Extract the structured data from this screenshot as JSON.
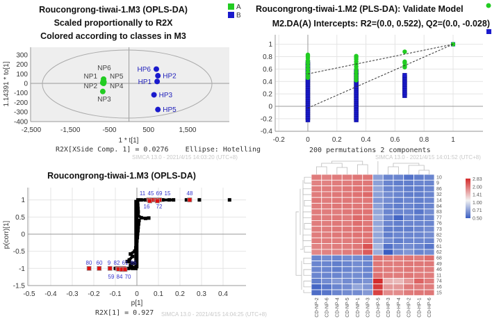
{
  "chart_data": [
    {
      "type": "scatter",
      "title": [
        "Roucongrong-tiwai-1.M3 (OPLS-DA)",
        "Scaled proportionally to R2X",
        "Colored according to classes in M3"
      ],
      "xlabel": "1 * t[1]",
      "ylabel": "1.14391 * to[1]",
      "footer": "R2X[XSide Comp. 1] = 0.0276    Ellipse: Hotelling",
      "watermark": "SIMCA 13.0 - 2021/4/15 14:03:20 (UTC+8)",
      "xlim": [
        -2500,
        2300
      ],
      "ylim": [
        -400,
        350
      ],
      "xticks": [
        "-2,500",
        "-1,500",
        "-500",
        "500",
        "1,500"
      ],
      "xtick_values": [
        -2500,
        -1500,
        -500,
        500,
        1500
      ],
      "yticks": [
        "300",
        "200",
        "100",
        "0",
        "-100",
        "-200",
        "-300",
        "-400"
      ],
      "ytick_values": [
        300,
        200,
        100,
        0,
        -100,
        -200,
        -300,
        -400
      ],
      "legend": [
        {
          "label": "A",
          "color": "#22cc22"
        },
        {
          "label": "B",
          "color": "#1a1acc"
        }
      ],
      "points": [
        {
          "label": "NP6",
          "class": "A",
          "x": -650,
          "y": 45
        },
        {
          "label": "NP1",
          "class": "A",
          "x": -660,
          "y": 20
        },
        {
          "label": "NP2",
          "class": "A",
          "x": -670,
          "y": 5
        },
        {
          "label": "NP5",
          "class": "A",
          "x": -640,
          "y": 15
        },
        {
          "label": "NP4",
          "class": "A",
          "x": -650,
          "y": 0
        },
        {
          "label": "NP3",
          "class": "A",
          "x": -670,
          "y": -85
        },
        {
          "label": "HP6",
          "class": "B",
          "x": 700,
          "y": 150
        },
        {
          "label": "HP2",
          "class": "B",
          "x": 740,
          "y": 80
        },
        {
          "label": "HP1",
          "class": "B",
          "x": 720,
          "y": 20
        },
        {
          "label": "HP3",
          "class": "B",
          "x": 640,
          "y": -120
        },
        {
          "label": "HP5",
          "class": "B",
          "x": 740,
          "y": -275
        }
      ]
    },
    {
      "type": "scatter",
      "title": [
        "Roucongrong-tiwai-1.M2 (PLS-DA): Validate Model",
        "M2.DA(A) Intercepts: R2=(0.0, 0.522), Q2=(0.0, -0.028)"
      ],
      "xlabel": "200 permutations 2 components",
      "watermark": "SIMCA 13.0 - 2021/4/15 14:01:52 (UTC+8)",
      "xlim": [
        -0.2,
        1.2
      ],
      "ylim": [
        -0.4,
        1.15
      ],
      "xticks": [
        "-0.2",
        "0",
        "0.2",
        "0.4",
        "0.6",
        "0.8",
        "1"
      ],
      "xtick_values": [
        -0.2,
        0,
        0.2,
        0.4,
        0.6,
        0.8,
        1
      ],
      "yticks": [
        "1",
        "0.8",
        "0.6",
        "0.4",
        "0.2",
        "0",
        "-0.2",
        "-0.4"
      ],
      "ytick_values": [
        1,
        0.8,
        0.6,
        0.4,
        0.2,
        0,
        -0.2,
        -0.4
      ],
      "series": [
        {
          "name": "R2",
          "color": "#22cc22",
          "marker": "circle",
          "points": [
            [
              0,
              0.83
            ],
            [
              0,
              0.81
            ],
            [
              0,
              0.78
            ],
            [
              0,
              0.74
            ],
            [
              0,
              0.7
            ],
            [
              0,
              0.65
            ],
            [
              0,
              0.6
            ],
            [
              0,
              0.55
            ],
            [
              0,
              0.5
            ],
            [
              0,
              0.46
            ],
            [
              0.333,
              0.81
            ],
            [
              0.333,
              0.79
            ],
            [
              0.333,
              0.76
            ],
            [
              0.333,
              0.72
            ],
            [
              0.333,
              0.68
            ],
            [
              0.333,
              0.64
            ],
            [
              0.333,
              0.6
            ],
            [
              0.333,
              0.55
            ],
            [
              0.333,
              0.5
            ],
            [
              0.333,
              0.46
            ],
            [
              0.333,
              0.42
            ],
            [
              0.667,
              0.88
            ],
            [
              0.667,
              0.72
            ],
            [
              0.667,
              0.7
            ],
            [
              0.667,
              0.65
            ],
            [
              0.667,
              0.63
            ],
            [
              1,
              1
            ]
          ]
        },
        {
          "name": "Q2",
          "color": "#1a1acc",
          "marker": "square",
          "range_points": [
            [
              0,
              -0.22,
              0.72
            ],
            [
              0.333,
              -0.22,
              0.57
            ],
            [
              0.667,
              0.17,
              0.5
            ]
          ],
          "points": [
            [
              1,
              1
            ]
          ]
        }
      ],
      "regression_lines": [
        {
          "name": "R2",
          "intercept": 0.522,
          "end": [
            1,
            1
          ]
        },
        {
          "name": "Q2",
          "intercept": -0.028,
          "end": [
            1,
            1
          ]
        }
      ]
    },
    {
      "type": "scatter",
      "title": "Roucongrong-tiwai-1.M3 (OPLS-DA)",
      "xlabel": "p[1]",
      "ylabel": "p(corr)[1]",
      "footer": "R2X[1] = 0.927",
      "watermark": "SIMCA 13.0 - 2021/4/15 14:04:25 (UTC+8)",
      "xlim": [
        -0.5,
        0.5
      ],
      "ylim": [
        -1.5,
        1.4
      ],
      "xticks": [
        "-0.5",
        "-0.4",
        "-0.3",
        "-0.2",
        "-0.1",
        "0",
        "0.1",
        "0.2",
        "0.3",
        "0.4"
      ],
      "xtick_values": [
        -0.5,
        -0.4,
        -0.3,
        -0.2,
        -0.1,
        0,
        0.1,
        0.2,
        0.3,
        0.4
      ],
      "yticks": [
        "1",
        "0.5",
        "0",
        "-0.5",
        "-1",
        "-1.5"
      ],
      "ytick_values": [
        1,
        0.5,
        0,
        -0.5,
        -1,
        -1.5
      ],
      "black_points": [
        [
          0.005,
          1
        ],
        [
          0.02,
          1
        ],
        [
          0.04,
          1
        ],
        [
          0.07,
          1
        ],
        [
          0.1,
          1
        ],
        [
          0.12,
          1
        ],
        [
          0.15,
          1
        ],
        [
          0.17,
          1
        ],
        [
          0.23,
          1
        ],
        [
          0.29,
          1
        ],
        [
          0.43,
          1
        ],
        [
          0.003,
          0.95
        ],
        [
          0.004,
          0.85
        ],
        [
          0.005,
          0.75
        ],
        [
          0.006,
          0.65
        ],
        [
          0.005,
          0.55
        ],
        [
          0.02,
          0.48
        ],
        [
          0.04,
          0.46
        ],
        [
          0.055,
          0.47
        ],
        [
          0.01,
          0.4
        ],
        [
          0.008,
          0.3
        ],
        [
          0.006,
          0.2
        ],
        [
          0.005,
          0.1
        ],
        [
          0.003,
          0
        ],
        [
          0.002,
          -0.1
        ],
        [
          0,
          -0.2
        ],
        [
          -0.003,
          -0.3
        ],
        [
          -0.005,
          -0.4
        ],
        [
          -0.01,
          -0.5
        ],
        [
          -0.03,
          -0.58
        ],
        [
          -0.02,
          -0.65
        ],
        [
          -0.035,
          -0.75
        ],
        [
          -0.045,
          -0.8
        ],
        [
          -0.02,
          -0.85
        ],
        [
          -0.03,
          -0.92
        ],
        [
          -0.005,
          -1
        ],
        [
          -0.02,
          -1
        ],
        [
          -0.04,
          -1
        ],
        [
          -0.06,
          -1
        ],
        [
          -0.08,
          -1
        ],
        [
          -0.1,
          -1
        ]
      ],
      "highlighted": [
        {
          "label": "11",
          "x": 0.055,
          "y": 1
        },
        {
          "label": "45",
          "x": 0.07,
          "y": 1
        },
        {
          "label": "69",
          "x": 0.09,
          "y": 1
        },
        {
          "label": "15",
          "x": 0.105,
          "y": 1
        },
        {
          "label": "16",
          "x": 0.06,
          "y": 0.97
        },
        {
          "label": "72",
          "x": 0.095,
          "y": 0.97
        },
        {
          "label": "48",
          "x": 0.245,
          "y": 1
        },
        {
          "label": "80",
          "x": -0.222,
          "y": -1
        },
        {
          "label": "60",
          "x": -0.175,
          "y": -1
        },
        {
          "label": "9",
          "x": -0.125,
          "y": -1
        },
        {
          "label": "82",
          "x": -0.09,
          "y": -1
        },
        {
          "label": "61",
          "x": -0.075,
          "y": -1
        },
        {
          "label": "86",
          "x": -0.06,
          "y": -1
        },
        {
          "label": "59",
          "x": -0.085,
          "y": -1.02
        },
        {
          "label": "84",
          "x": -0.07,
          "y": -1.03
        },
        {
          "label": "70",
          "x": -0.055,
          "y": -1.03
        }
      ]
    },
    {
      "type": "heatmap",
      "columns": [
        "CD-NP-2",
        "CD-NP-6",
        "CD-NP-4",
        "CD-NP-5",
        "CD-NP-1",
        "CD-NP-3",
        "CD-HP-5",
        "CD-HP-3",
        "CD-HP-4",
        "CD-HP-2",
        "CD-HP-1",
        "CD-HP-6"
      ],
      "rows": [
        "10",
        "9",
        "86",
        "32",
        "14",
        "84",
        "83",
        "77",
        "76",
        "73",
        "82",
        "70",
        "61",
        "62",
        "68",
        "49",
        "46",
        "11",
        "74",
        "16",
        "15"
      ],
      "values": [
        [
          1.85,
          1.8,
          1.85,
          1.85,
          1.9,
          1.9,
          0.68,
          0.6,
          0.6,
          0.55,
          0.58,
          0.6
        ],
        [
          1.8,
          1.8,
          1.85,
          1.85,
          1.9,
          1.9,
          0.68,
          0.6,
          0.58,
          0.58,
          0.6,
          0.6
        ],
        [
          1.85,
          1.85,
          1.85,
          1.9,
          1.95,
          1.9,
          0.7,
          0.6,
          0.6,
          0.58,
          0.58,
          0.6
        ],
        [
          1.85,
          1.85,
          1.9,
          1.9,
          1.95,
          2.05,
          0.68,
          0.62,
          0.6,
          0.58,
          0.58,
          0.6
        ],
        [
          1.9,
          1.85,
          1.9,
          1.9,
          1.9,
          1.9,
          0.65,
          0.62,
          0.58,
          0.6,
          0.58,
          0.6
        ],
        [
          1.85,
          1.85,
          1.9,
          1.9,
          1.9,
          1.9,
          0.68,
          0.6,
          0.58,
          0.6,
          0.58,
          0.6
        ],
        [
          1.85,
          1.85,
          1.85,
          1.9,
          1.95,
          1.95,
          0.7,
          0.6,
          0.6,
          0.6,
          0.56,
          0.62
        ],
        [
          1.85,
          1.85,
          1.9,
          1.85,
          2.05,
          1.95,
          0.72,
          0.6,
          0.52,
          0.6,
          0.58,
          0.6
        ],
        [
          1.85,
          1.85,
          1.9,
          1.85,
          2.0,
          1.9,
          0.7,
          0.6,
          0.58,
          0.6,
          0.6,
          0.6
        ],
        [
          1.85,
          1.85,
          1.9,
          1.9,
          1.95,
          1.95,
          0.72,
          0.58,
          0.58,
          0.58,
          0.6,
          0.62
        ],
        [
          1.85,
          1.85,
          1.9,
          1.9,
          1.95,
          1.95,
          0.7,
          0.58,
          0.6,
          0.6,
          0.6,
          0.62
        ],
        [
          1.85,
          1.85,
          1.85,
          1.85,
          1.9,
          1.95,
          0.7,
          0.62,
          0.58,
          0.6,
          0.6,
          0.6
        ],
        [
          1.8,
          1.8,
          1.85,
          1.85,
          1.9,
          2.3,
          0.75,
          0.55,
          0.6,
          0.62,
          0.6,
          0.56
        ],
        [
          1.75,
          1.8,
          1.8,
          1.85,
          1.9,
          2.2,
          0.72,
          0.5,
          0.62,
          0.65,
          0.6,
          0.62
        ],
        [
          0.6,
          0.62,
          0.6,
          0.62,
          0.62,
          0.6,
          1.95,
          1.85,
          1.85,
          1.9,
          1.85,
          2.0
        ],
        [
          0.6,
          0.6,
          0.58,
          0.6,
          0.62,
          0.6,
          1.9,
          1.85,
          1.85,
          1.9,
          1.9,
          1.9
        ],
        [
          0.6,
          0.6,
          0.58,
          0.6,
          0.62,
          0.6,
          1.9,
          1.85,
          1.85,
          1.9,
          1.85,
          1.85
        ],
        [
          0.6,
          0.6,
          0.6,
          0.62,
          0.62,
          0.6,
          1.95,
          1.85,
          1.85,
          1.9,
          1.85,
          1.85
        ],
        [
          0.58,
          0.62,
          0.66,
          0.62,
          0.62,
          0.64,
          2.8,
          1.4,
          1.35,
          1.6,
          2.1,
          1.85
        ],
        [
          0.52,
          0.56,
          0.6,
          0.62,
          0.7,
          0.65,
          2.6,
          1.6,
          1.6,
          1.85,
          1.85,
          1.85
        ],
        [
          0.54,
          0.56,
          0.6,
          0.62,
          0.62,
          0.66,
          2.5,
          1.7,
          1.7,
          1.85,
          1.9,
          1.9
        ]
      ],
      "legend_ticks": [
        "2.83",
        "2.00",
        "1.41",
        "1.00",
        "0.71",
        "0.50"
      ],
      "scale": {
        "min": 0.5,
        "mid": 1.0,
        "max": 2.83,
        "low_color": "#3a5ec2",
        "mid_color": "#f2f2f2",
        "high_color": "#d42b2b"
      }
    }
  ]
}
